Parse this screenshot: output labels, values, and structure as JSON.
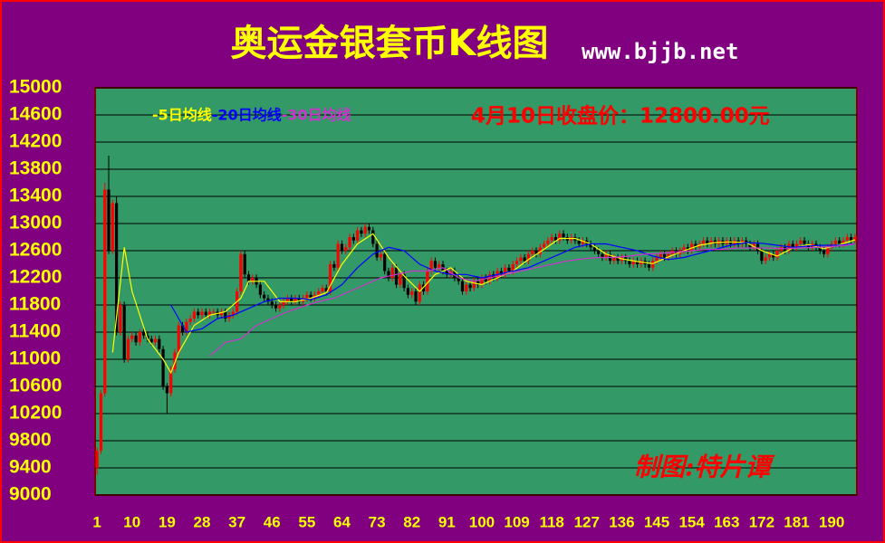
{
  "chart_data": {
    "type": "candlestick",
    "title": "奥运金银套币K线图",
    "subtitle": "www.bjjb.net",
    "annotation": "4月10日收盘价：12800.00元",
    "watermark": "制图:特片谭",
    "up_color": "#ff0000",
    "down_color": "#000000",
    "xlim": [
      0.5,
      196.5
    ],
    "ylim": [
      9000,
      15000
    ],
    "xticks": [
      1,
      10,
      19,
      28,
      37,
      46,
      55,
      64,
      73,
      82,
      91,
      100,
      109,
      118,
      127,
      136,
      145,
      154,
      163,
      172,
      181,
      190
    ],
    "yticks": [
      9000,
      9400,
      9800,
      10200,
      10600,
      11000,
      11400,
      11800,
      12200,
      12600,
      13000,
      13400,
      13800,
      14200,
      14600,
      15000
    ],
    "grid": true,
    "x": [
      1,
      2,
      3,
      4,
      5,
      6,
      7,
      8,
      9,
      10,
      11,
      12,
      13,
      14,
      15,
      16,
      17,
      18,
      19,
      20,
      21,
      22,
      23,
      24,
      25,
      26,
      27,
      28,
      29,
      30,
      31,
      32,
      33,
      34,
      35,
      36,
      37,
      38,
      39,
      40,
      41,
      42,
      43,
      44,
      45,
      46,
      47,
      48,
      49,
      50,
      51,
      52,
      53,
      54,
      55,
      56,
      57,
      58,
      59,
      60,
      61,
      62,
      63,
      64,
      65,
      66,
      67,
      68,
      69,
      70,
      71,
      72,
      73,
      74,
      75,
      76,
      77,
      78,
      79,
      80,
      81,
      82,
      83,
      84,
      85,
      86,
      87,
      88,
      89,
      90,
      91,
      92,
      93,
      94,
      95,
      96,
      97,
      98,
      99,
      100,
      101,
      102,
      103,
      104,
      105,
      106,
      107,
      108,
      109,
      110,
      111,
      112,
      113,
      114,
      115,
      116,
      117,
      118,
      119,
      120,
      121,
      122,
      123,
      124,
      125,
      126,
      127,
      128,
      129,
      130,
      131,
      132,
      133,
      134,
      135,
      136,
      137,
      138,
      139,
      140,
      141,
      142,
      143,
      144,
      145,
      146,
      147,
      148,
      149,
      150,
      151,
      152,
      153,
      154,
      155,
      156,
      157,
      158,
      159,
      160,
      161,
      162,
      163,
      164,
      165,
      166,
      167,
      168,
      169,
      170,
      171,
      172,
      173,
      174,
      175,
      176,
      177,
      178,
      179,
      180,
      181,
      182,
      183,
      184,
      185,
      186,
      187,
      188,
      189,
      190,
      191,
      192,
      193,
      194,
      195,
      196
    ],
    "open": [
      9400,
      9650,
      10500,
      13500,
      12600,
      13300,
      11400,
      11800,
      11000,
      11300,
      11350,
      11250,
      11400,
      11350,
      11300,
      11250,
      11300,
      11150,
      10600,
      10500,
      10850,
      11100,
      11500,
      11400,
      11550,
      11600,
      11700,
      11650,
      11700,
      11650,
      11700,
      11700,
      11650,
      11700,
      11600,
      11650,
      11700,
      12000,
      12550,
      12250,
      12150,
      12200,
      12100,
      11950,
      11900,
      11850,
      11800,
      11750,
      11800,
      11850,
      11900,
      11850,
      11900,
      11850,
      11900,
      11950,
      11900,
      11950,
      12000,
      12050,
      12000,
      12400,
      12350,
      12700,
      12600,
      12650,
      12800,
      12750,
      12900,
      12850,
      12950,
      12900,
      12700,
      12500,
      12550,
      12300,
      12200,
      12350,
      12100,
      12250,
      12050,
      11950,
      12000,
      11850,
      12100,
      12000,
      12300,
      12450,
      12350,
      12400,
      12300,
      12250,
      12300,
      12200,
      12150,
      12000,
      12100,
      12050,
      12150,
      12100,
      12200,
      12150,
      12250,
      12200,
      12300,
      12250,
      12350,
      12300,
      12400,
      12450,
      12500,
      12450,
      12550,
      12600,
      12550,
      12650,
      12700,
      12750,
      12800,
      12750,
      12850,
      12800,
      12750,
      12800,
      12750,
      12700,
      12750,
      12700,
      12650,
      12600,
      12550,
      12500,
      12550,
      12450,
      12500,
      12450,
      12500,
      12450,
      12400,
      12450,
      12400,
      12450,
      12400,
      12350,
      12450,
      12500,
      12550,
      12500,
      12550,
      12600,
      12550,
      12600,
      12650,
      12600,
      12700,
      12650,
      12700,
      12750,
      12700,
      12750,
      12700,
      12750,
      12700,
      12750,
      12700,
      12750,
      12700,
      12750,
      12700,
      12650,
      12700,
      12600,
      12450,
      12500,
      12550,
      12500,
      12600,
      12650,
      12600,
      12700,
      12650,
      12700,
      12750,
      12700,
      12650,
      12700,
      12650,
      12600,
      12550,
      12650,
      12700,
      12750,
      12700,
      12750,
      12800,
      12750
    ],
    "high": [
      9700,
      10550,
      13600,
      14000,
      13350,
      13400,
      11850,
      11850,
      11350,
      11400,
      11400,
      11450,
      11450,
      11400,
      11350,
      11350,
      11350,
      11200,
      10650,
      10900,
      11150,
      11550,
      11550,
      11600,
      11650,
      11750,
      11750,
      11750,
      11750,
      11750,
      11750,
      11750,
      11750,
      11750,
      11700,
      11750,
      12050,
      12600,
      12600,
      12300,
      12250,
      12250,
      12150,
      12000,
      11950,
      11900,
      11850,
      11850,
      11900,
      11950,
      11950,
      11950,
      11950,
      11950,
      12000,
      12000,
      12000,
      12050,
      12100,
      12100,
      12450,
      12450,
      12750,
      12750,
      12700,
      12850,
      12850,
      12950,
      12950,
      13000,
      13000,
      12950,
      12750,
      12600,
      12600,
      12350,
      12400,
      12400,
      12300,
      12300,
      12100,
      12050,
      12050,
      12150,
      12150,
      12350,
      12500,
      12500,
      12450,
      12450,
      12350,
      12350,
      12350,
      12250,
      12200,
      12150,
      12150,
      12200,
      12200,
      12250,
      12250,
      12300,
      12300,
      12350,
      12350,
      12400,
      12400,
      12450,
      12500,
      12550,
      12550,
      12600,
      12650,
      12650,
      12700,
      12750,
      12800,
      12850,
      12850,
      12900,
      12900,
      12850,
      12850,
      12850,
      12800,
      12800,
      12800,
      12750,
      12700,
      12650,
      12600,
      12600,
      12600,
      12550,
      12550,
      12550,
      12550,
      12500,
      12500,
      12500,
      12500,
      12500,
      12450,
      12500,
      12550,
      12600,
      12600,
      12600,
      12650,
      12650,
      12650,
      12700,
      12700,
      12750,
      12750,
      12750,
      12800,
      12800,
      12800,
      12800,
      12800,
      12800,
      12800,
      12800,
      12800,
      12800,
      12800,
      12800,
      12750,
      12750,
      12750,
      12650,
      12550,
      12600,
      12600,
      12650,
      12700,
      12700,
      12750,
      12750,
      12750,
      12800,
      12800,
      12750,
      12750,
      12750,
      12700,
      12650,
      12700,
      12750,
      12800,
      12800,
      12800,
      12850,
      12850,
      12850
    ],
    "low": [
      9300,
      9600,
      10450,
      12550,
      12550,
      11350,
      11350,
      10950,
      10950,
      11250,
      11200,
      11200,
      11300,
      11250,
      11200,
      11200,
      11100,
      10550,
      10200,
      10450,
      10800,
      11050,
      11350,
      11350,
      11500,
      11550,
      11600,
      11600,
      11600,
      11600,
      11650,
      11600,
      11600,
      11550,
      11550,
      11600,
      11650,
      11950,
      12200,
      12100,
      12100,
      12050,
      11900,
      11850,
      11800,
      11750,
      11700,
      11700,
      11750,
      11800,
      11800,
      11800,
      11800,
      11800,
      11850,
      11850,
      11850,
      11900,
      11950,
      11950,
      11950,
      12300,
      12300,
      12550,
      12550,
      12600,
      12700,
      12700,
      12800,
      12800,
      12850,
      12650,
      12450,
      12450,
      12250,
      12150,
      12150,
      12050,
      12050,
      12000,
      11900,
      11900,
      11800,
      11800,
      11950,
      11950,
      12250,
      12300,
      12300,
      12250,
      12200,
      12200,
      12150,
      12100,
      11950,
      11950,
      12000,
      12000,
      12050,
      12050,
      12100,
      12100,
      12150,
      12150,
      12200,
      12200,
      12250,
      12250,
      12350,
      12400,
      12400,
      12400,
      12500,
      12500,
      12500,
      12600,
      12650,
      12700,
      12700,
      12700,
      12750,
      12700,
      12700,
      12700,
      12650,
      12650,
      12650,
      12600,
      12550,
      12500,
      12450,
      12450,
      12400,
      12400,
      12400,
      12400,
      12400,
      12350,
      12350,
      12350,
      12350,
      12350,
      12300,
      12300,
      12400,
      12450,
      12450,
      12450,
      12500,
      12500,
      12500,
      12550,
      12550,
      12550,
      12600,
      12600,
      12650,
      12650,
      12650,
      12650,
      12650,
      12650,
      12650,
      12650,
      12650,
      12650,
      12650,
      12650,
      12600,
      12600,
      12550,
      12400,
      12400,
      12450,
      12450,
      12450,
      12550,
      12550,
      12550,
      12600,
      12600,
      12650,
      12650,
      12600,
      12600,
      12600,
      12550,
      12500,
      12500,
      12600,
      12650,
      12650,
      12650,
      12700,
      12700,
      12700
    ],
    "close": [
      9650,
      10500,
      13500,
      12600,
      13300,
      11400,
      11800,
      11000,
      11300,
      11350,
      11250,
      11400,
      11350,
      11300,
      11250,
      11300,
      11150,
      10600,
      10500,
      10850,
      11100,
      11500,
      11400,
      11550,
      11600,
      11700,
      11650,
      11700,
      11650,
      11700,
      11700,
      11650,
      11700,
      11600,
      11650,
      11700,
      12000,
      12550,
      12250,
      12150,
      12200,
      12100,
      11950,
      11900,
      11850,
      11800,
      11750,
      11800,
      11850,
      11900,
      11850,
      11900,
      11850,
      11900,
      11950,
      11900,
      11950,
      12000,
      12050,
      12000,
      12400,
      12350,
      12700,
      12600,
      12650,
      12800,
      12750,
      12900,
      12850,
      12950,
      12900,
      12700,
      12500,
      12550,
      12300,
      12200,
      12350,
      12100,
      12250,
      12050,
      11950,
      12000,
      11850,
      12100,
      12000,
      12300,
      12450,
      12350,
      12400,
      12300,
      12250,
      12300,
      12200,
      12150,
      12000,
      12100,
      12050,
      12150,
      12100,
      12200,
      12150,
      12250,
      12200,
      12300,
      12250,
      12350,
      12300,
      12400,
      12450,
      12500,
      12450,
      12550,
      12600,
      12550,
      12650,
      12700,
      12750,
      12800,
      12750,
      12850,
      12800,
      12750,
      12800,
      12750,
      12700,
      12750,
      12700,
      12650,
      12600,
      12550,
      12500,
      12550,
      12450,
      12500,
      12450,
      12500,
      12450,
      12400,
      12450,
      12400,
      12450,
      12400,
      12350,
      12450,
      12500,
      12550,
      12500,
      12550,
      12600,
      12550,
      12600,
      12650,
      12600,
      12700,
      12650,
      12700,
      12750,
      12700,
      12750,
      12700,
      12750,
      12700,
      12750,
      12700,
      12750,
      12700,
      12750,
      12700,
      12650,
      12700,
      12600,
      12450,
      12500,
      12550,
      12500,
      12600,
      12650,
      12600,
      12700,
      12650,
      12700,
      12750,
      12700,
      12650,
      12700,
      12650,
      12600,
      12550,
      12650,
      12700,
      12750,
      12700,
      12750,
      12800,
      12750,
      12800
    ],
    "lines": [
      {
        "name": "-5日均线",
        "color": "#ffff00",
        "x": [
          5,
          8,
          10,
          14,
          18,
          20,
          22,
          26,
          30,
          34,
          38,
          40,
          44,
          48,
          52,
          56,
          60,
          64,
          68,
          72,
          76,
          80,
          84,
          88,
          92,
          96,
          100,
          104,
          108,
          112,
          116,
          120,
          124,
          128,
          132,
          136,
          140,
          144,
          148,
          152,
          156,
          160,
          164,
          168,
          172,
          176,
          180,
          184,
          188,
          192,
          196
        ],
        "values": [
          11100,
          12650,
          12000,
          11300,
          11000,
          10800,
          11100,
          11500,
          11650,
          11700,
          11900,
          12150,
          12150,
          11850,
          11850,
          11900,
          11980,
          12400,
          12700,
          12850,
          12500,
          12230,
          12000,
          12250,
          12350,
          12150,
          12100,
          12200,
          12300,
          12470,
          12620,
          12780,
          12780,
          12700,
          12550,
          12480,
          12440,
          12410,
          12510,
          12600,
          12680,
          12720,
          12730,
          12720,
          12600,
          12520,
          12640,
          12690,
          12630,
          12690,
          12760
        ]
      },
      {
        "name": "-20日均线",
        "color": "#0000ff",
        "x": [
          20,
          24,
          28,
          32,
          36,
          40,
          44,
          48,
          52,
          56,
          60,
          64,
          68,
          72,
          76,
          80,
          84,
          88,
          92,
          96,
          100,
          104,
          108,
          112,
          116,
          120,
          124,
          128,
          132,
          136,
          140,
          144,
          148,
          152,
          156,
          160,
          164,
          168,
          172,
          176,
          180,
          184,
          188,
          192,
          196
        ],
        "values": [
          11800,
          11400,
          11450,
          11600,
          11650,
          11750,
          11850,
          11900,
          11900,
          11880,
          11950,
          12100,
          12350,
          12550,
          12650,
          12600,
          12400,
          12300,
          12250,
          12250,
          12200,
          12250,
          12300,
          12350,
          12450,
          12550,
          12650,
          12700,
          12700,
          12650,
          12600,
          12520,
          12470,
          12500,
          12560,
          12620,
          12680,
          12720,
          12710,
          12680,
          12650,
          12670,
          12680,
          12680,
          12700
        ]
      },
      {
        "name": "-30日均线",
        "color": "#cc33cc",
        "x": [
          30,
          34,
          38,
          42,
          46,
          50,
          54,
          58,
          62,
          66,
          70,
          74,
          78,
          82,
          86,
          90,
          94,
          98,
          102,
          106,
          110,
          114,
          118,
          122,
          126,
          130,
          134,
          138,
          142,
          146,
          150,
          154,
          158,
          162,
          166,
          170,
          174,
          178,
          182,
          186,
          190,
          194,
          196
        ],
        "values": [
          11050,
          11250,
          11300,
          11500,
          11600,
          11700,
          11780,
          11850,
          11900,
          12000,
          12100,
          12200,
          12250,
          12300,
          12300,
          12350,
          12200,
          12150,
          12200,
          12250,
          12300,
          12350,
          12400,
          12450,
          12480,
          12500,
          12500,
          12520,
          12550,
          12560,
          12580,
          12600,
          12620,
          12620,
          12640,
          12640,
          12640,
          12630,
          12640,
          12650,
          12660,
          12680,
          12700
        ]
      }
    ]
  }
}
